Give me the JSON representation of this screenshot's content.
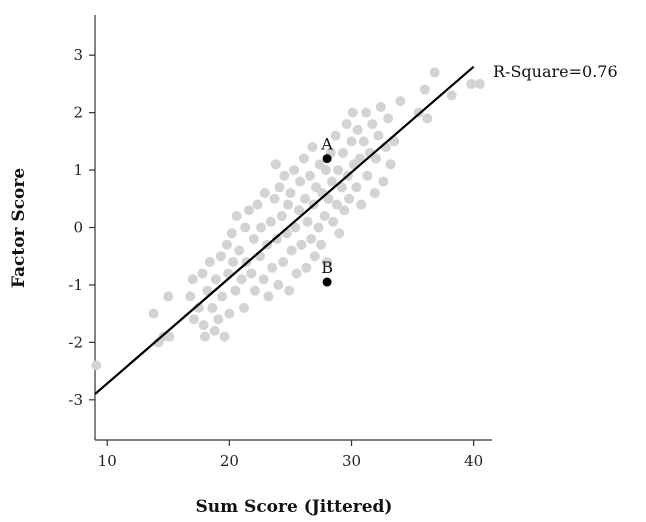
{
  "chart_data": {
    "type": "scatter",
    "title": "",
    "xlabel": "Sum Score (Jittered)",
    "ylabel": "Factor Score",
    "xlim": [
      9,
      41.5
    ],
    "ylim": [
      -3.7,
      3.7
    ],
    "xticks": [
      10,
      20,
      30,
      40
    ],
    "yticks": [
      -3,
      -2,
      -1,
      0,
      1,
      2,
      3
    ],
    "grid": false,
    "legend": "none",
    "colors": {
      "points": "#d3d3d3",
      "highlight": "#000000",
      "line": "#000000"
    },
    "points": [
      [
        9.1,
        -2.4
      ],
      [
        13.8,
        -1.5
      ],
      [
        14.2,
        -2.0
      ],
      [
        14.6,
        -1.9
      ],
      [
        15.0,
        -1.2
      ],
      [
        15.1,
        -1.9
      ],
      [
        16.8,
        -1.2
      ],
      [
        17.0,
        -0.9
      ],
      [
        17.1,
        -1.6
      ],
      [
        17.5,
        -1.4
      ],
      [
        17.8,
        -0.8
      ],
      [
        17.9,
        -1.7
      ],
      [
        18.0,
        -1.9
      ],
      [
        18.2,
        -1.1
      ],
      [
        18.4,
        -0.6
      ],
      [
        18.6,
        -1.4
      ],
      [
        18.8,
        -1.8
      ],
      [
        18.9,
        -0.9
      ],
      [
        19.1,
        -1.6
      ],
      [
        19.3,
        -0.5
      ],
      [
        19.4,
        -1.2
      ],
      [
        19.6,
        -1.9
      ],
      [
        19.8,
        -0.3
      ],
      [
        19.9,
        -0.8
      ],
      [
        20.0,
        -1.5
      ],
      [
        20.2,
        -0.1
      ],
      [
        20.3,
        -0.6
      ],
      [
        20.5,
        -1.1
      ],
      [
        20.6,
        0.2
      ],
      [
        20.8,
        -0.4
      ],
      [
        21.0,
        -0.9
      ],
      [
        21.2,
        -1.4
      ],
      [
        21.3,
        0.0
      ],
      [
        21.4,
        -0.6
      ],
      [
        21.6,
        0.3
      ],
      [
        21.8,
        -0.8
      ],
      [
        22.0,
        -0.2
      ],
      [
        22.1,
        -1.1
      ],
      [
        22.3,
        0.4
      ],
      [
        22.5,
        -0.5
      ],
      [
        22.6,
        0.0
      ],
      [
        22.8,
        -0.9
      ],
      [
        22.9,
        0.6
      ],
      [
        23.1,
        -0.3
      ],
      [
        23.2,
        -1.2
      ],
      [
        23.4,
        0.1
      ],
      [
        23.5,
        -0.7
      ],
      [
        23.7,
        0.5
      ],
      [
        23.8,
        1.1
      ],
      [
        23.9,
        -0.2
      ],
      [
        24.0,
        -1.0
      ],
      [
        24.1,
        0.7
      ],
      [
        24.3,
        0.2
      ],
      [
        24.4,
        -0.6
      ],
      [
        24.5,
        0.9
      ],
      [
        24.7,
        -0.1
      ],
      [
        24.8,
        0.4
      ],
      [
        24.9,
        -1.1
      ],
      [
        25.0,
        0.6
      ],
      [
        25.1,
        -0.4
      ],
      [
        25.3,
        1.0
      ],
      [
        25.4,
        0.0
      ],
      [
        25.5,
        -0.8
      ],
      [
        25.7,
        0.3
      ],
      [
        25.8,
        0.8
      ],
      [
        25.9,
        -0.3
      ],
      [
        26.1,
        1.2
      ],
      [
        26.2,
        0.5
      ],
      [
        26.3,
        -0.7
      ],
      [
        26.4,
        0.1
      ],
      [
        26.6,
        0.9
      ],
      [
        26.7,
        -0.2
      ],
      [
        26.8,
        1.4
      ],
      [
        26.9,
        0.4
      ],
      [
        27.0,
        -0.5
      ],
      [
        27.1,
        0.7
      ],
      [
        27.3,
        0.0
      ],
      [
        27.4,
        1.1
      ],
      [
        27.5,
        -0.3
      ],
      [
        27.6,
        0.6
      ],
      [
        27.8,
        0.2
      ],
      [
        27.9,
        1.0
      ],
      [
        28.0,
        -0.6
      ],
      [
        28.1,
        0.5
      ],
      [
        28.3,
        1.3
      ],
      [
        28.4,
        0.8
      ],
      [
        28.5,
        0.1
      ],
      [
        28.7,
        1.6
      ],
      [
        28.8,
        0.4
      ],
      [
        28.9,
        1.0
      ],
      [
        29.0,
        -0.1
      ],
      [
        29.2,
        0.7
      ],
      [
        29.3,
        1.3
      ],
      [
        29.4,
        0.3
      ],
      [
        29.6,
        1.8
      ],
      [
        29.7,
        0.9
      ],
      [
        29.8,
        0.5
      ],
      [
        30.0,
        1.5
      ],
      [
        30.1,
        2.0
      ],
      [
        30.2,
        1.1
      ],
      [
        30.4,
        0.7
      ],
      [
        30.5,
        1.7
      ],
      [
        30.7,
        1.2
      ],
      [
        30.8,
        0.4
      ],
      [
        31.0,
        1.5
      ],
      [
        31.2,
        2.0
      ],
      [
        31.3,
        0.9
      ],
      [
        31.5,
        1.3
      ],
      [
        31.7,
        1.8
      ],
      [
        31.9,
        0.6
      ],
      [
        32.0,
        1.2
      ],
      [
        32.2,
        1.6
      ],
      [
        32.4,
        2.1
      ],
      [
        32.6,
        0.8
      ],
      [
        32.8,
        1.4
      ],
      [
        33.0,
        1.9
      ],
      [
        33.2,
        1.1
      ],
      [
        33.5,
        1.5
      ],
      [
        34.0,
        2.2
      ],
      [
        35.5,
        2.0
      ],
      [
        36.0,
        2.4
      ],
      [
        36.2,
        1.9
      ],
      [
        36.8,
        2.7
      ],
      [
        38.2,
        2.3
      ],
      [
        39.8,
        2.5
      ],
      [
        40.5,
        2.5
      ]
    ],
    "highlighted_points": [
      {
        "label": "A",
        "x": 28.0,
        "y": 1.2
      },
      {
        "label": "B",
        "x": 28.0,
        "y": -0.95
      }
    ],
    "regression_line": {
      "from": [
        9.0,
        -2.9
      ],
      "to": [
        40.0,
        2.8
      ],
      "label": "R-Square=0.76"
    }
  }
}
